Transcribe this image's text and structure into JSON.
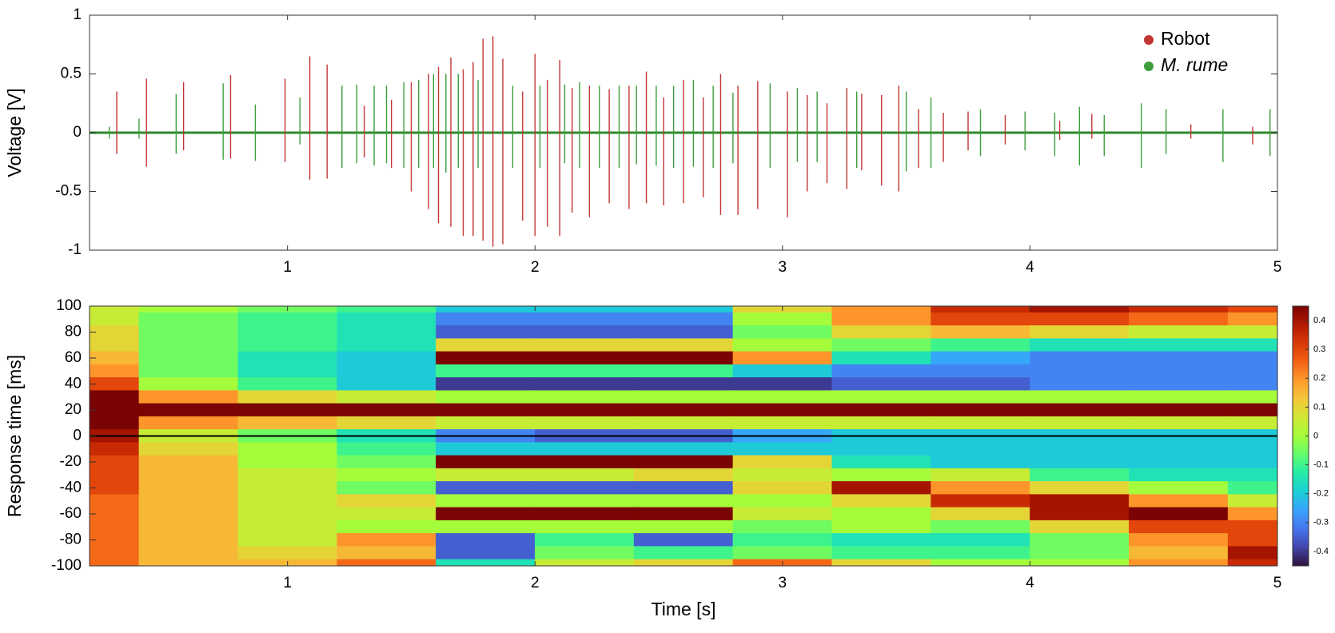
{
  "chart_data": [
    {
      "type": "spike",
      "ylabel": "Voltage [V]",
      "xlim": [
        0.2,
        5
      ],
      "ylim": [
        -1,
        1
      ],
      "xticks": [
        1,
        2,
        3,
        4,
        5
      ],
      "yticks": [
        -1,
        -0.5,
        0,
        0.5,
        1
      ],
      "legend": "upper right",
      "series": [
        {
          "name": "Robot",
          "color": "#c23434",
          "x": [
            0.31,
            0.43,
            0.58,
            0.77,
            0.99,
            1.09,
            1.16,
            1.31,
            1.42,
            1.5,
            1.57,
            1.61,
            1.66,
            1.71,
            1.75,
            1.79,
            1.83,
            1.87,
            1.95,
            2.0,
            2.05,
            2.1,
            2.15,
            2.22,
            2.3,
            2.38,
            2.45,
            2.52,
            2.6,
            2.68,
            2.75,
            2.82,
            2.9,
            3.02,
            3.1,
            3.18,
            3.26,
            3.32,
            3.4,
            3.47,
            3.55,
            3.65,
            3.75,
            3.9,
            4.12,
            4.25,
            4.65,
            4.9
          ],
          "values": [
            0.35,
            0.46,
            0.43,
            0.49,
            0.46,
            0.65,
            0.58,
            0.23,
            0.28,
            0.43,
            0.5,
            0.56,
            0.64,
            0.54,
            0.6,
            0.8,
            0.82,
            0.63,
            0.35,
            0.67,
            0.45,
            0.62,
            0.38,
            0.4,
            0.37,
            0.4,
            0.52,
            0.3,
            0.45,
            0.3,
            0.5,
            0.4,
            0.44,
            0.35,
            0.32,
            0.25,
            0.38,
            0.33,
            0.32,
            0.4,
            0.2,
            0.17,
            0.18,
            0.15,
            0.1,
            0.16,
            0.07,
            0.05
          ],
          "lows": [
            -0.18,
            -0.29,
            -0.15,
            -0.22,
            -0.25,
            -0.4,
            -0.39,
            -0.21,
            -0.3,
            -0.5,
            -0.65,
            -0.77,
            -0.8,
            -0.88,
            -0.88,
            -0.92,
            -0.97,
            -0.95,
            -0.75,
            -0.88,
            -0.8,
            -0.88,
            -0.68,
            -0.72,
            -0.6,
            -0.65,
            -0.6,
            -0.62,
            -0.6,
            -0.55,
            -0.7,
            -0.7,
            -0.65,
            -0.72,
            -0.5,
            -0.43,
            -0.48,
            -0.32,
            -0.45,
            -0.5,
            -0.3,
            -0.25,
            -0.15,
            -0.1,
            -0.06,
            -0.05,
            -0.05,
            -0.1
          ]
        },
        {
          "name": "M. rume",
          "color": "#3d9e3d",
          "x": [
            0.28,
            0.4,
            0.55,
            0.74,
            0.87,
            1.05,
            1.22,
            1.28,
            1.35,
            1.4,
            1.47,
            1.53,
            1.59,
            1.64,
            1.69,
            1.77,
            1.91,
            2.02,
            2.12,
            2.18,
            2.26,
            2.34,
            2.41,
            2.49,
            2.56,
            2.64,
            2.72,
            2.8,
            2.95,
            3.06,
            3.14,
            3.3,
            3.5,
            3.6,
            3.8,
            3.98,
            4.1,
            4.2,
            4.3,
            4.45,
            4.55,
            4.78,
            4.97
          ],
          "values": [
            0.05,
            0.12,
            0.33,
            0.42,
            0.24,
            0.3,
            0.4,
            0.41,
            0.4,
            0.4,
            0.43,
            0.45,
            0.5,
            0.5,
            0.5,
            0.45,
            0.4,
            0.4,
            0.41,
            0.43,
            0.4,
            0.4,
            0.4,
            0.4,
            0.4,
            0.45,
            0.4,
            0.34,
            0.42,
            0.38,
            0.35,
            0.35,
            0.35,
            0.3,
            0.2,
            0.18,
            0.17,
            0.22,
            0.15,
            0.25,
            0.2,
            0.2,
            0.2
          ],
          "lows": [
            -0.05,
            -0.05,
            -0.18,
            -0.23,
            -0.24,
            -0.1,
            -0.3,
            -0.26,
            -0.28,
            -0.26,
            -0.3,
            -0.3,
            -0.3,
            -0.34,
            -0.3,
            -0.3,
            -0.3,
            -0.3,
            -0.26,
            -0.3,
            -0.3,
            -0.3,
            -0.27,
            -0.28,
            -0.3,
            -0.29,
            -0.3,
            -0.26,
            -0.3,
            -0.25,
            -0.25,
            -0.3,
            -0.33,
            -0.3,
            -0.2,
            -0.15,
            -0.2,
            -0.28,
            -0.2,
            -0.3,
            -0.18,
            -0.25,
            -0.2
          ]
        }
      ]
    },
    {
      "type": "heatmap",
      "xlabel": "Time [s]",
      "ylabel": "Response time [ms]",
      "xlim": [
        0.2,
        5
      ],
      "ylim": [
        -100,
        100
      ],
      "xticks": [
        1,
        2,
        3,
        4,
        5
      ],
      "yticks": [
        -100,
        -80,
        -60,
        -40,
        -20,
        0,
        20,
        40,
        60,
        80,
        100
      ],
      "clim": [
        -0.45,
        0.45
      ],
      "cticks": [
        -0.4,
        -0.3,
        -0.2,
        -0.1,
        0,
        0.1,
        0.2,
        0.3,
        0.4
      ],
      "x": [
        0.2,
        0.6,
        1.0,
        1.4,
        1.8,
        2.2,
        2.6,
        3.0,
        3.4,
        3.8,
        4.2,
        4.6,
        5.0
      ],
      "y": [
        100,
        90,
        80,
        70,
        60,
        50,
        40,
        30,
        20,
        10,
        0,
        -10,
        -20,
        -30,
        -40,
        -50,
        -60,
        -70,
        -80,
        -90,
        -100
      ],
      "z": [
        [
          0.05,
          0.0,
          -0.05,
          -0.1,
          -0.2,
          -0.2,
          -0.2,
          0.1,
          0.2,
          0.35,
          0.4,
          0.35,
          0.3
        ],
        [
          0.05,
          -0.05,
          -0.1,
          -0.15,
          -0.3,
          -0.3,
          -0.3,
          0.0,
          0.2,
          0.3,
          0.3,
          0.25,
          0.2
        ],
        [
          0.1,
          -0.05,
          -0.1,
          -0.15,
          -0.35,
          -0.35,
          -0.35,
          -0.05,
          0.1,
          0.15,
          0.1,
          0.05,
          0.05
        ],
        [
          0.1,
          -0.05,
          -0.1,
          -0.15,
          0.1,
          0.1,
          0.1,
          0.0,
          -0.05,
          -0.1,
          -0.15,
          -0.15,
          -0.15
        ],
        [
          0.15,
          -0.05,
          -0.15,
          -0.2,
          0.45,
          0.45,
          0.45,
          0.2,
          -0.15,
          -0.25,
          -0.3,
          -0.3,
          -0.3
        ],
        [
          0.2,
          -0.05,
          -0.15,
          -0.2,
          -0.1,
          -0.1,
          -0.1,
          -0.2,
          -0.3,
          -0.3,
          -0.3,
          -0.3,
          -0.3
        ],
        [
          0.3,
          0.0,
          -0.1,
          -0.2,
          -0.4,
          -0.4,
          -0.4,
          -0.4,
          -0.35,
          -0.35,
          -0.3,
          -0.3,
          -0.3
        ],
        [
          0.45,
          0.2,
          0.1,
          0.05,
          0.0,
          0.0,
          0.0,
          0.0,
          0.0,
          0.0,
          0.0,
          0.0,
          0.0
        ],
        [
          0.5,
          0.45,
          0.45,
          0.45,
          0.45,
          0.45,
          0.45,
          0.45,
          0.45,
          0.45,
          0.45,
          0.45,
          0.45
        ],
        [
          0.45,
          0.2,
          0.15,
          0.1,
          0.05,
          0.05,
          0.05,
          0.05,
          0.05,
          0.05,
          0.05,
          0.05,
          0.05
        ],
        [
          0.4,
          0.05,
          -0.05,
          -0.15,
          -0.3,
          -0.35,
          -0.35,
          -0.25,
          -0.2,
          -0.2,
          -0.2,
          -0.2,
          -0.2
        ],
        [
          0.35,
          0.1,
          0.0,
          -0.1,
          -0.2,
          -0.2,
          -0.2,
          -0.2,
          -0.2,
          -0.2,
          -0.2,
          -0.2,
          -0.2
        ],
        [
          0.3,
          0.15,
          0.0,
          -0.05,
          0.45,
          0.45,
          0.45,
          0.1,
          -0.15,
          -0.2,
          -0.2,
          -0.2,
          -0.2
        ],
        [
          0.3,
          0.15,
          0.05,
          0.0,
          0.05,
          0.05,
          0.1,
          0.05,
          0.0,
          0.05,
          -0.1,
          -0.15,
          -0.15
        ],
        [
          0.3,
          0.15,
          0.05,
          -0.05,
          -0.35,
          -0.35,
          -0.35,
          0.1,
          0.4,
          0.2,
          0.1,
          0.0,
          -0.1
        ],
        [
          0.25,
          0.15,
          0.05,
          0.1,
          0.0,
          0.0,
          0.0,
          0.0,
          0.1,
          0.35,
          0.4,
          0.2,
          0.05
        ],
        [
          0.25,
          0.15,
          0.05,
          0.05,
          0.45,
          0.45,
          0.45,
          0.05,
          0.0,
          0.1,
          0.4,
          0.45,
          0.2
        ],
        [
          0.25,
          0.15,
          0.05,
          0.0,
          0.0,
          0.0,
          0.0,
          -0.05,
          0.0,
          -0.05,
          0.1,
          0.3,
          0.3
        ],
        [
          0.25,
          0.15,
          0.05,
          0.2,
          -0.35,
          -0.1,
          -0.35,
          -0.1,
          -0.15,
          -0.15,
          -0.05,
          0.2,
          0.3
        ],
        [
          0.25,
          0.15,
          0.1,
          0.15,
          -0.35,
          -0.05,
          -0.1,
          -0.05,
          -0.1,
          -0.1,
          -0.05,
          0.15,
          0.4
        ],
        [
          0.25,
          0.15,
          0.15,
          0.25,
          -0.15,
          0.05,
          0.1,
          0.25,
          0.1,
          0.0,
          0.0,
          0.2,
          0.35
        ]
      ]
    }
  ]
}
